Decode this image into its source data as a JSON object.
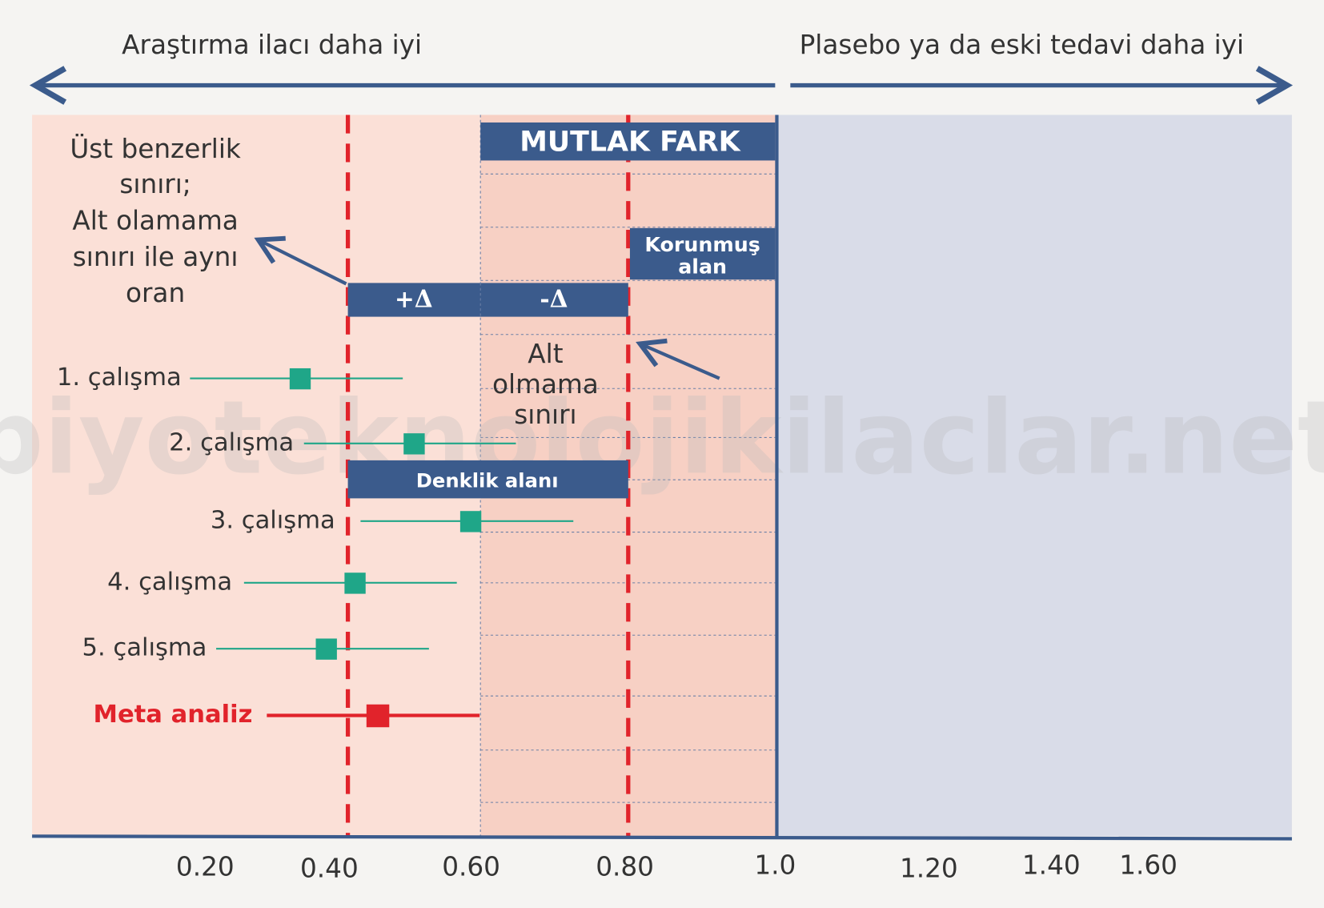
{
  "header": {
    "left": "Araştırma ilacı daha iyi",
    "right": "Plasebo ya da eski tedavi daha iyi"
  },
  "boxes": {
    "absolute_difference": "MUTLAK FARK",
    "protected_area": [
      "Korunmuş",
      "alan"
    ],
    "plus_delta": "+Δ",
    "minus_delta": "-Δ",
    "equivalence_area": "Denklik alanı"
  },
  "notes": {
    "upper_margin": [
      "Üst benzerlik",
      "sınırı;",
      "Alt olamama",
      "sınırı ile aynı",
      "oran"
    ],
    "non_inferiority_margin": [
      "Alt",
      "olmama",
      "sınırı"
    ]
  },
  "studies": [
    "1. çalışma",
    "2. çalışma",
    "3. çalışma",
    "4. çalışma",
    "5. çalışma"
  ],
  "meta_analysis": "Meta analiz",
  "axis_ticks": [
    "0.20",
    "0.40",
    "0.60",
    "0.80",
    "1.0",
    "1.20",
    "1.40",
    "1.60"
  ],
  "watermark": "biyoteknolojikilaclar.net"
}
